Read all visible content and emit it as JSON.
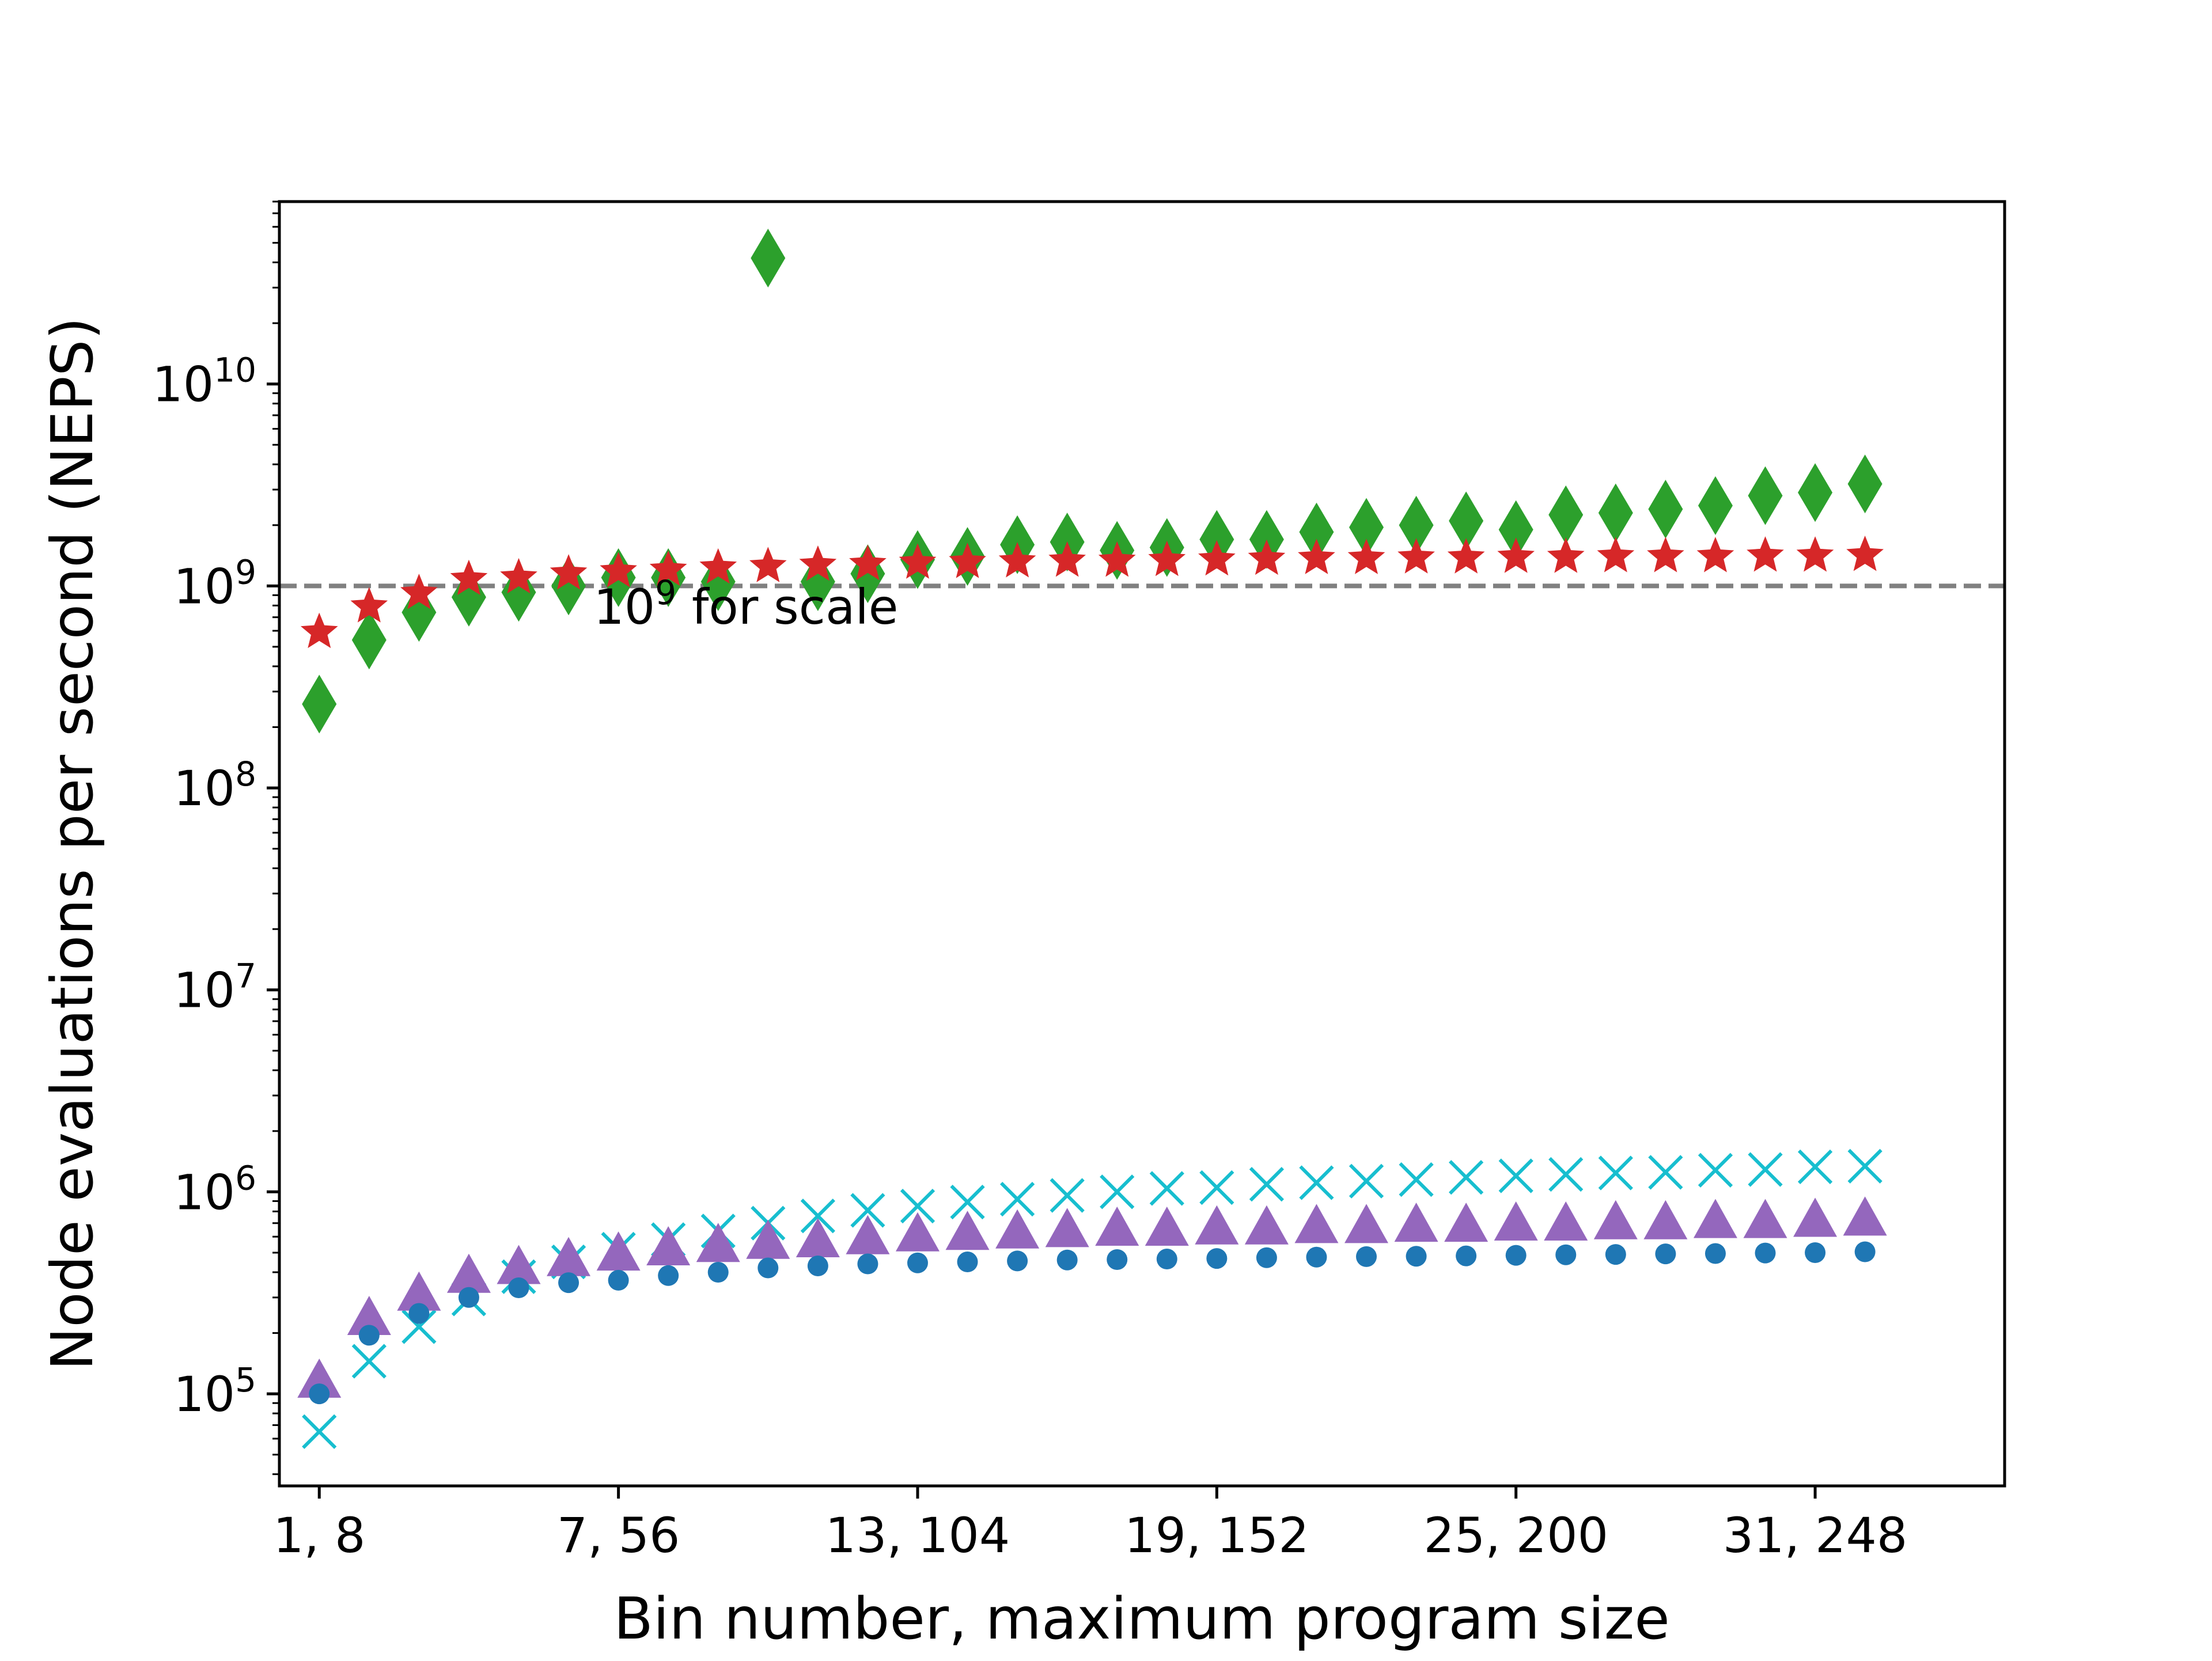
{
  "chart_data": {
    "type": "scatter",
    "title": "",
    "xlabel": "Bin number, maximum program size",
    "ylabel": "Node evaluations per second (NEPS)",
    "yscale": "log",
    "xlim": [
      0.2,
      34.8
    ],
    "ylim": [
      35000,
      80000000000
    ],
    "grid": false,
    "legend": "none",
    "x_ticks": [
      {
        "bin": 1,
        "label": "1, 8"
      },
      {
        "bin": 7,
        "label": "7, 56"
      },
      {
        "bin": 13,
        "label": "13, 104"
      },
      {
        "bin": 19,
        "label": "19, 152"
      },
      {
        "bin": 25,
        "label": "25, 200"
      },
      {
        "bin": 31,
        "label": "31, 248"
      }
    ],
    "y_ticks": [
      {
        "value": 100000,
        "base": "10",
        "exp": "5"
      },
      {
        "value": 1000000,
        "base": "10",
        "exp": "6"
      },
      {
        "value": 10000000,
        "base": "10",
        "exp": "7"
      },
      {
        "value": 100000000,
        "base": "10",
        "exp": "8"
      },
      {
        "value": 1000000000,
        "base": "10",
        "exp": "9"
      },
      {
        "value": 10000000000,
        "base": "10",
        "exp": "10"
      }
    ],
    "reference_line": {
      "value": 1000000000,
      "color": "#808080",
      "annotation": {
        "base": "10",
        "exp": "9",
        "text": " for scale",
        "x": 6.5,
        "y": 650000000
      }
    },
    "x": [
      1,
      2,
      3,
      4,
      5,
      6,
      7,
      8,
      9,
      10,
      11,
      12,
      13,
      14,
      15,
      16,
      17,
      18,
      19,
      20,
      21,
      22,
      23,
      24,
      25,
      26,
      27,
      28,
      29,
      30,
      31,
      32
    ],
    "series": [
      {
        "marker": "diamond",
        "color": "#2ca02c",
        "values": [
          260000000,
          540000000,
          740000000,
          880000000,
          930000000,
          1000000000,
          1100000000,
          1100000000,
          1050000000,
          42000000000,
          1050000000,
          1150000000,
          1350000000,
          1400000000,
          1600000000,
          1650000000,
          1500000000,
          1550000000,
          1700000000,
          1700000000,
          1850000000,
          1950000000,
          2000000000,
          2100000000,
          1900000000,
          2250000000,
          2300000000,
          2400000000,
          2500000000,
          2800000000,
          2900000000,
          3200000000
        ]
      },
      {
        "marker": "star",
        "color": "#d62728",
        "values": [
          590000000,
          790000000,
          920000000,
          1080000000,
          1100000000,
          1150000000,
          1180000000,
          1200000000,
          1230000000,
          1250000000,
          1270000000,
          1280000000,
          1300000000,
          1310000000,
          1320000000,
          1330000000,
          1330000000,
          1340000000,
          1350000000,
          1360000000,
          1370000000,
          1370000000,
          1380000000,
          1380000000,
          1390000000,
          1390000000,
          1400000000,
          1400000000,
          1400000000,
          1410000000,
          1410000000,
          1420000000
        ]
      },
      {
        "marker": "x",
        "color": "#17becf",
        "values": [
          65000,
          145000,
          215000,
          295000,
          380000,
          450000,
          520000,
          580000,
          640000,
          700000,
          760000,
          810000,
          850000,
          890000,
          920000,
          960000,
          1000000,
          1040000,
          1050000,
          1090000,
          1110000,
          1130000,
          1150000,
          1180000,
          1200000,
          1220000,
          1240000,
          1250000,
          1280000,
          1290000,
          1330000,
          1340000
        ]
      },
      {
        "marker": "triangle",
        "color": "#9467bd",
        "values": [
          115000,
          235000,
          310000,
          380000,
          420000,
          460000,
          490000,
          520000,
          540000,
          560000,
          570000,
          590000,
          610000,
          620000,
          630000,
          640000,
          650000,
          650000,
          660000,
          660000,
          670000,
          670000,
          680000,
          680000,
          690000,
          690000,
          700000,
          700000,
          710000,
          710000,
          720000,
          730000
        ]
      },
      {
        "marker": "circle",
        "color": "#1f77b4",
        "values": [
          100000,
          195000,
          250000,
          300000,
          335000,
          355000,
          365000,
          385000,
          400000,
          420000,
          430000,
          440000,
          445000,
          450000,
          455000,
          460000,
          462000,
          465000,
          468000,
          472000,
          475000,
          478000,
          480000,
          482000,
          485000,
          488000,
          490000,
          493000,
          495000,
          498000,
          500000,
          505000
        ]
      }
    ]
  }
}
